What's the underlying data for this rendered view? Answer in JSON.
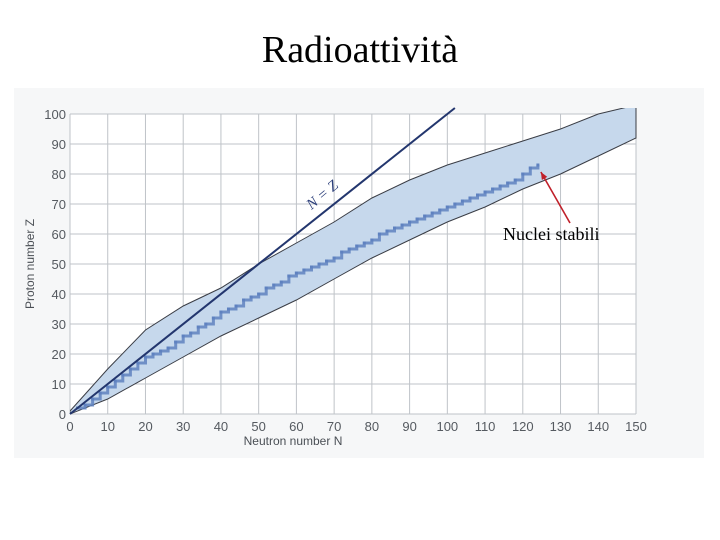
{
  "slide": {
    "title": "Radioattività"
  },
  "chart_data": {
    "type": "scatter",
    "title": "",
    "xlabel": "Neutron number N",
    "ylabel": "Proton number Z",
    "xlim": [
      0,
      150
    ],
    "ylim": [
      0,
      100
    ],
    "xticks": [
      0,
      10,
      20,
      30,
      40,
      50,
      60,
      70,
      80,
      90,
      100,
      110,
      120,
      130,
      140,
      150
    ],
    "yticks": [
      0,
      10,
      20,
      30,
      40,
      50,
      60,
      70,
      80,
      90,
      100
    ],
    "grid": true,
    "reference_line": {
      "label": "N = Z",
      "from": [
        0,
        0
      ],
      "to": [
        102,
        102
      ]
    },
    "band_upper_edge": [
      [
        0,
        1
      ],
      [
        5,
        8
      ],
      [
        10,
        15
      ],
      [
        20,
        28
      ],
      [
        30,
        36
      ],
      [
        40,
        42
      ],
      [
        50,
        50
      ],
      [
        60,
        57
      ],
      [
        70,
        64
      ],
      [
        80,
        72
      ],
      [
        90,
        78
      ],
      [
        100,
        83
      ],
      [
        110,
        87
      ],
      [
        120,
        91
      ],
      [
        130,
        95
      ],
      [
        140,
        100
      ],
      [
        150,
        103
      ]
    ],
    "band_lower_edge": [
      [
        0,
        0
      ],
      [
        10,
        5
      ],
      [
        20,
        12
      ],
      [
        30,
        19
      ],
      [
        40,
        26
      ],
      [
        50,
        32
      ],
      [
        60,
        38
      ],
      [
        70,
        45
      ],
      [
        80,
        52
      ],
      [
        90,
        58
      ],
      [
        100,
        64
      ],
      [
        110,
        69
      ],
      [
        120,
        75
      ],
      [
        130,
        80
      ],
      [
        140,
        86
      ],
      [
        150,
        92
      ]
    ],
    "stable_nuclei": [
      [
        2,
        2
      ],
      [
        4,
        3
      ],
      [
        6,
        5
      ],
      [
        8,
        7
      ],
      [
        10,
        9
      ],
      [
        12,
        11
      ],
      [
        14,
        13
      ],
      [
        16,
        15
      ],
      [
        18,
        17
      ],
      [
        20,
        19
      ],
      [
        22,
        20
      ],
      [
        24,
        21
      ],
      [
        26,
        22
      ],
      [
        28,
        24
      ],
      [
        30,
        26
      ],
      [
        32,
        27
      ],
      [
        34,
        29
      ],
      [
        36,
        30
      ],
      [
        38,
        32
      ],
      [
        40,
        34
      ],
      [
        42,
        35
      ],
      [
        44,
        36
      ],
      [
        46,
        38
      ],
      [
        48,
        39
      ],
      [
        50,
        40
      ],
      [
        52,
        42
      ],
      [
        54,
        43
      ],
      [
        56,
        44
      ],
      [
        58,
        46
      ],
      [
        60,
        47
      ],
      [
        62,
        48
      ],
      [
        64,
        49
      ],
      [
        66,
        50
      ],
      [
        68,
        51
      ],
      [
        70,
        52
      ],
      [
        72,
        54
      ],
      [
        74,
        55
      ],
      [
        76,
        56
      ],
      [
        78,
        57
      ],
      [
        80,
        58
      ],
      [
        82,
        60
      ],
      [
        84,
        61
      ],
      [
        86,
        62
      ],
      [
        88,
        63
      ],
      [
        90,
        64
      ],
      [
        92,
        65
      ],
      [
        94,
        66
      ],
      [
        96,
        67
      ],
      [
        98,
        68
      ],
      [
        100,
        69
      ],
      [
        102,
        70
      ],
      [
        104,
        71
      ],
      [
        106,
        72
      ],
      [
        108,
        73
      ],
      [
        110,
        74
      ],
      [
        112,
        75
      ],
      [
        114,
        76
      ],
      [
        116,
        77
      ],
      [
        118,
        78
      ],
      [
        120,
        80
      ],
      [
        122,
        82
      ],
      [
        124,
        83
      ]
    ],
    "annotation": {
      "text": "Nuclei stabili",
      "target": [
        124,
        82
      ]
    },
    "colors": {
      "band": "#c6d8ec",
      "band_edge": "#3a3d45",
      "stable": "#5f82c0",
      "reference": "#23366e",
      "grid": "#bfc3c8",
      "arrow": "#c0202a"
    }
  }
}
